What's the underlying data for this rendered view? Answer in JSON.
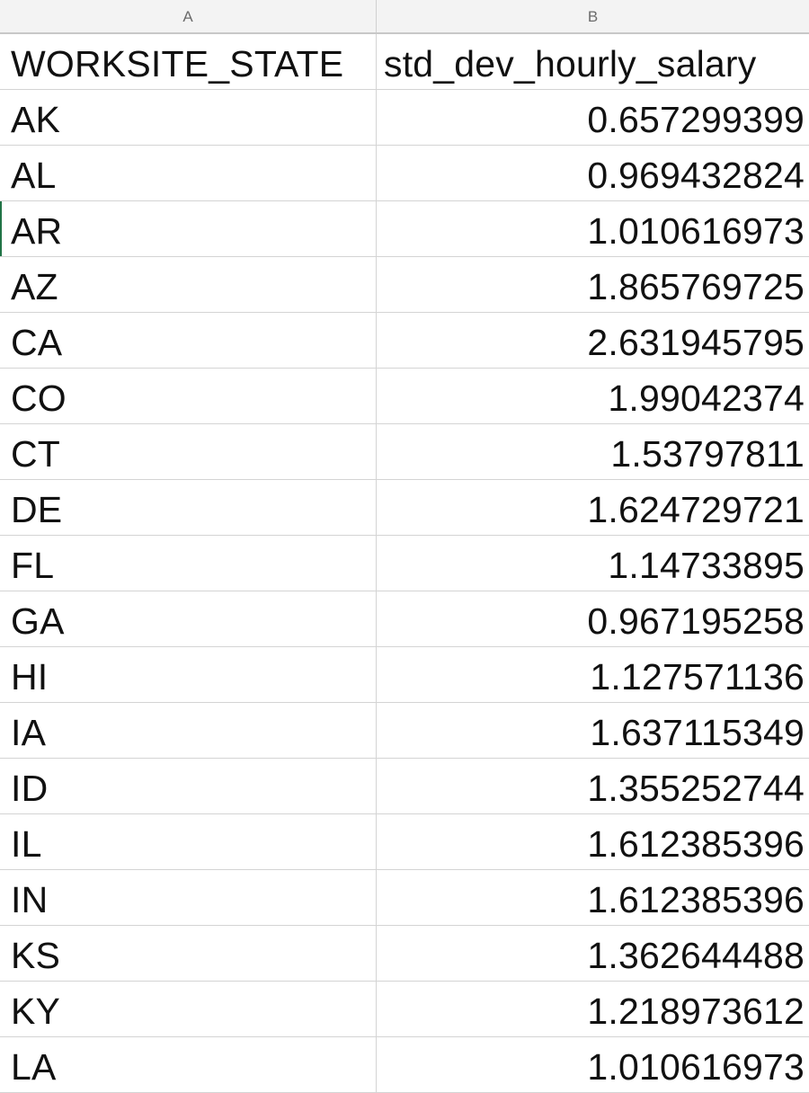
{
  "column_headers": [
    "A",
    "B"
  ],
  "header": {
    "col_a": "WORKSITE_STATE",
    "col_b": "std_dev_hourly_salary"
  },
  "rows": [
    {
      "state": "AK",
      "value": "0.657299399"
    },
    {
      "state": "AL",
      "value": "0.969432824"
    },
    {
      "state": "AR",
      "value": "1.010616973"
    },
    {
      "state": "AZ",
      "value": "1.865769725"
    },
    {
      "state": "CA",
      "value": "2.631945795"
    },
    {
      "state": "CO",
      "value": "1.99042374"
    },
    {
      "state": "CT",
      "value": "1.53797811"
    },
    {
      "state": "DE",
      "value": "1.624729721"
    },
    {
      "state": "FL",
      "value": "1.14733895"
    },
    {
      "state": "GA",
      "value": "0.967195258"
    },
    {
      "state": "HI",
      "value": "1.127571136"
    },
    {
      "state": "IA",
      "value": "1.637115349"
    },
    {
      "state": "ID",
      "value": "1.355252744"
    },
    {
      "state": "IL",
      "value": "1.612385396"
    },
    {
      "state": "IN",
      "value": "1.612385396"
    },
    {
      "state": "KS",
      "value": "1.362644488"
    },
    {
      "state": "KY",
      "value": "1.218973612"
    },
    {
      "state": "LA",
      "value": "1.010616973"
    }
  ],
  "active_row_index": 2,
  "colors": {
    "grid_line": "#d4d4d4",
    "header_bg": "#f3f3f3",
    "active_cell_marker": "#217346"
  }
}
